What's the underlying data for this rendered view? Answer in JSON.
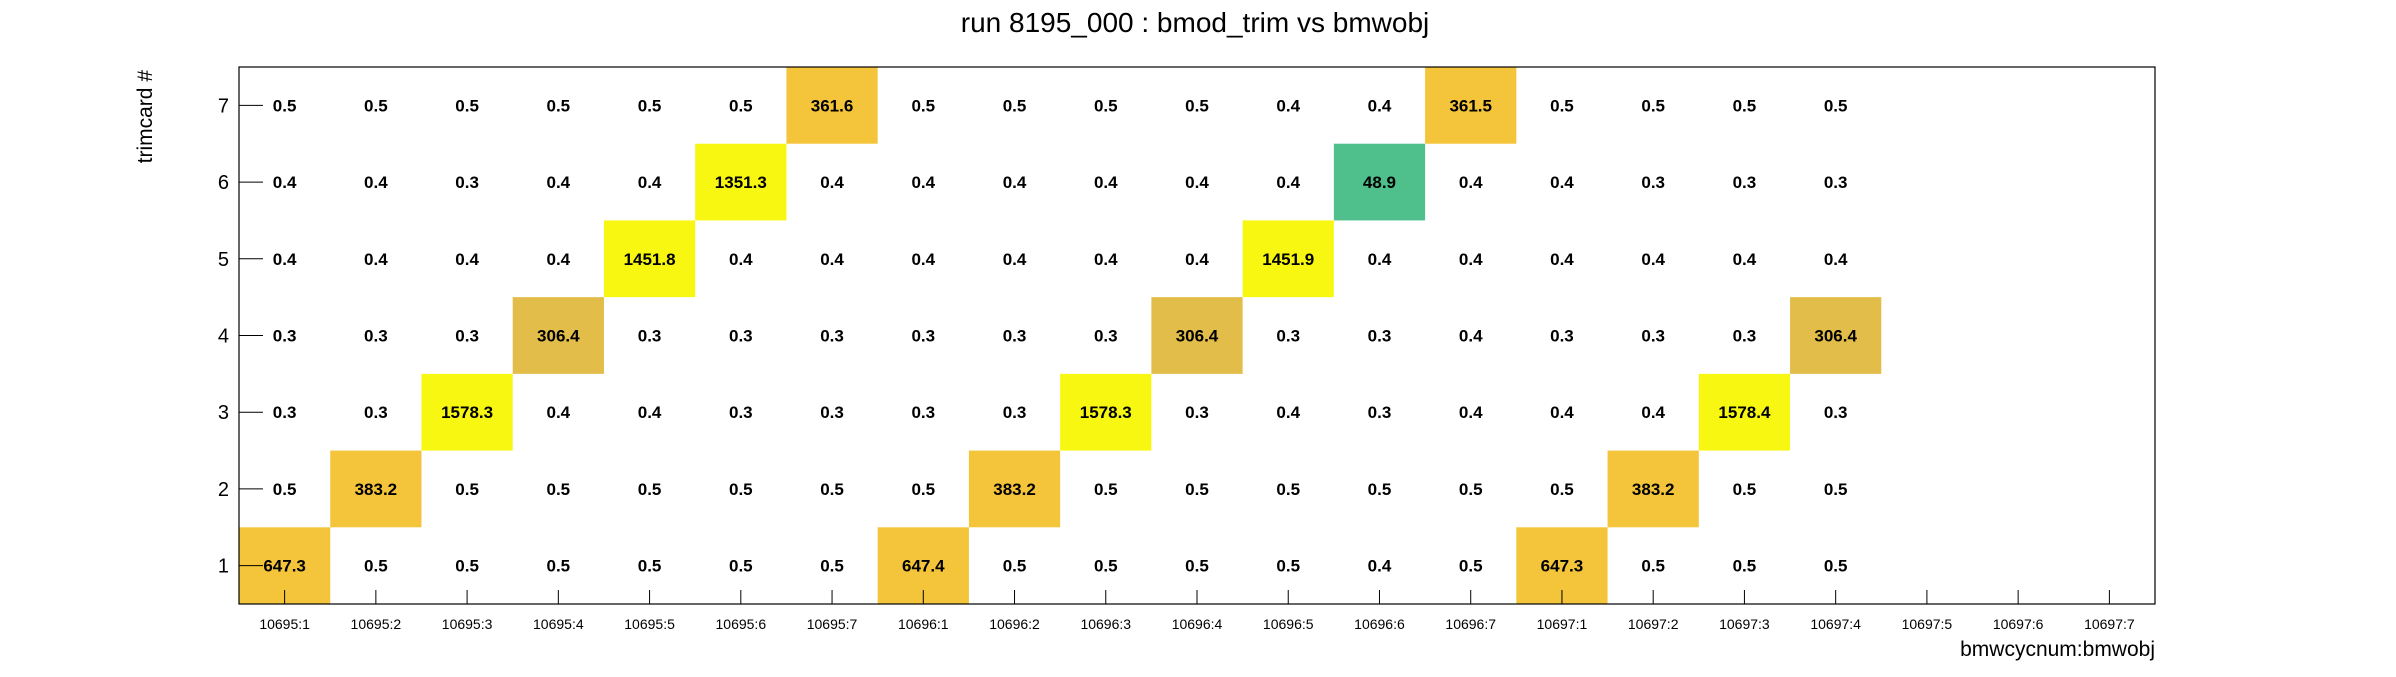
{
  "chart_data": {
    "type": "heatmap",
    "title": "run 8195_000 : bmod_trim vs bmwobj",
    "xlabel": "bmwcycnum:bmwobj",
    "ylabel": "trimcard #",
    "x_categories": [
      "10695:1",
      "10695:2",
      "10695:3",
      "10695:4",
      "10695:5",
      "10695:6",
      "10695:7",
      "10696:1",
      "10696:2",
      "10696:3",
      "10696:4",
      "10696:5",
      "10696:6",
      "10696:7",
      "10697:1",
      "10697:2",
      "10697:3",
      "10697:4",
      "10697:5",
      "10697:6",
      "10697:7"
    ],
    "y_categories": [
      "1",
      "2",
      "3",
      "4",
      "5",
      "6",
      "7"
    ],
    "values": [
      [
        "647.3",
        "0.5",
        "0.5",
        "0.5",
        "0.5",
        "0.5",
        "0.5",
        "647.4",
        "0.5",
        "0.5",
        "0.5",
        "0.5",
        "0.4",
        "0.5",
        "647.3",
        "0.5",
        "0.5",
        "0.5",
        null,
        null,
        null
      ],
      [
        "0.5",
        "383.2",
        "0.5",
        "0.5",
        "0.5",
        "0.5",
        "0.5",
        "0.5",
        "383.2",
        "0.5",
        "0.5",
        "0.5",
        "0.5",
        "0.5",
        "0.5",
        "383.2",
        "0.5",
        "0.5",
        null,
        null,
        null
      ],
      [
        "0.3",
        "0.3",
        "1578.3",
        "0.4",
        "0.4",
        "0.3",
        "0.3",
        "0.3",
        "0.3",
        "1578.3",
        "0.3",
        "0.4",
        "0.3",
        "0.4",
        "0.4",
        "0.4",
        "1578.4",
        "0.3",
        null,
        null,
        null
      ],
      [
        "0.3",
        "0.3",
        "0.3",
        "306.4",
        "0.3",
        "0.3",
        "0.3",
        "0.3",
        "0.3",
        "0.3",
        "306.4",
        "0.3",
        "0.3",
        "0.4",
        "0.3",
        "0.3",
        "0.3",
        "306.4",
        null,
        null,
        null
      ],
      [
        "0.4",
        "0.4",
        "0.4",
        "0.4",
        "1451.8",
        "0.4",
        "0.4",
        "0.4",
        "0.4",
        "0.4",
        "0.4",
        "1451.9",
        "0.4",
        "0.4",
        "0.4",
        "0.4",
        "0.4",
        "0.4",
        null,
        null,
        null
      ],
      [
        "0.4",
        "0.4",
        "0.3",
        "0.4",
        "0.4",
        "1351.3",
        "0.4",
        "0.4",
        "0.4",
        "0.4",
        "0.4",
        "0.4",
        "48.9",
        "0.4",
        "0.4",
        "0.3",
        "0.3",
        "0.3",
        null,
        null,
        null
      ],
      [
        "0.5",
        "0.5",
        "0.5",
        "0.5",
        "0.5",
        "0.5",
        "361.6",
        "0.5",
        "0.5",
        "0.5",
        "0.5",
        "0.4",
        "0.4",
        "361.5",
        "0.5",
        "0.5",
        "0.5",
        "0.5",
        null,
        null,
        null
      ]
    ],
    "color_scale": "palette (blue → green → yellow), log-like",
    "colors": {
      "low_green": "#4fbf8c",
      "mid_gold": "#e2bd49",
      "amber": "#f4c53a",
      "high_yellow": "#f7f712",
      "frame": "#000000"
    },
    "grid": false,
    "legend": "none"
  }
}
